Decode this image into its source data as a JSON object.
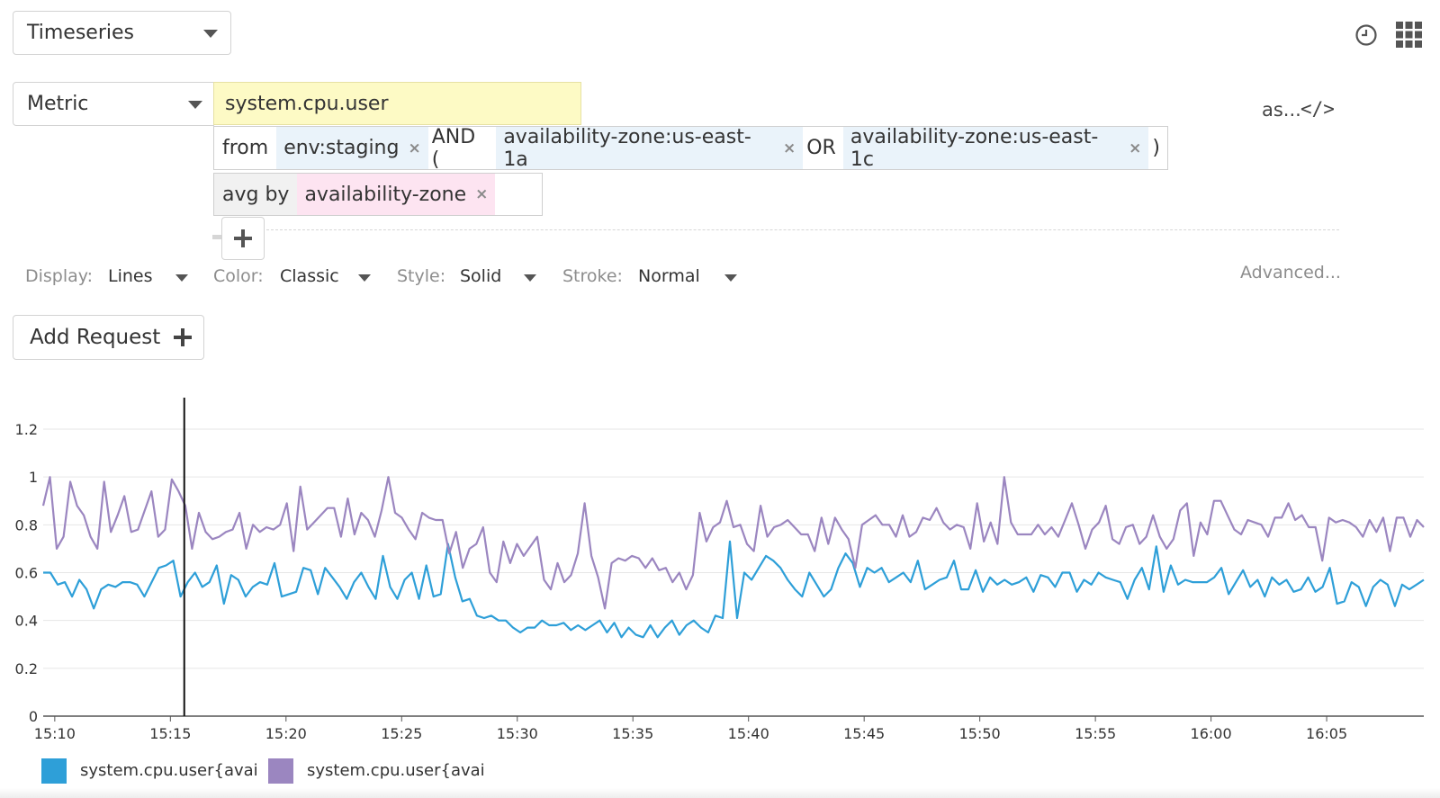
{
  "widget_type": {
    "value": "Timeseries"
  },
  "query": {
    "source_type": "Metric",
    "metric": "system.cpu.user",
    "from_label": "from",
    "tags": [
      {
        "text": "env:staging"
      },
      {
        "text": "availability-zone:us-east-1a"
      },
      {
        "text": "availability-zone:us-east-1c"
      }
    ],
    "ops": {
      "and": "AND (",
      "or": "OR",
      "close": ")"
    },
    "avg_by_label": "avg by",
    "group_tag": "availability-zone",
    "remove_glyph": "×",
    "add_glyph": "+"
  },
  "toolbar": {
    "as_label": "as...",
    "code_label": "</>"
  },
  "display_options": {
    "display": {
      "label": "Display:",
      "value": "Lines"
    },
    "color": {
      "label": "Color:",
      "value": "Classic"
    },
    "style": {
      "label": "Style:",
      "value": "Solid"
    },
    "stroke": {
      "label": "Stroke:",
      "value": "Normal"
    },
    "advanced": "Advanced..."
  },
  "add_request": {
    "label": "Add Request",
    "glyph": "+"
  },
  "icons": {
    "top_right": [
      "clock-icon",
      "grid-icon"
    ]
  },
  "chart_data": {
    "type": "line",
    "title": "",
    "xlabel": "",
    "ylabel": "",
    "ylim": [
      0,
      1.3
    ],
    "yticks": [
      "0",
      "0.2",
      "0.4",
      "0.6",
      "0.8",
      "1",
      "1.2"
    ],
    "xticks": [
      "15:10",
      "15:15",
      "15:20",
      "15:25",
      "15:30",
      "15:35",
      "15:40",
      "15:45",
      "15:50",
      "15:55",
      "16:00",
      "16:05"
    ],
    "x_start_minutes": -0.5,
    "x_end_minutes": 59.2,
    "cursor_minute": 5.6,
    "grid": true,
    "legend_position": "bottom-left",
    "series": [
      {
        "label": "system.cpu.user{avai",
        "color": "#2e9fd8",
        "values": [
          0.6,
          0.6,
          0.55,
          0.56,
          0.5,
          0.57,
          0.53,
          0.45,
          0.53,
          0.55,
          0.54,
          0.56,
          0.56,
          0.55,
          0.5,
          0.56,
          0.62,
          0.63,
          0.65,
          0.5,
          0.56,
          0.6,
          0.54,
          0.56,
          0.63,
          0.47,
          0.59,
          0.57,
          0.5,
          0.54,
          0.56,
          0.55,
          0.64,
          0.5,
          0.51,
          0.52,
          0.62,
          0.61,
          0.51,
          0.62,
          0.58,
          0.54,
          0.49,
          0.56,
          0.6,
          0.54,
          0.49,
          0.67,
          0.54,
          0.49,
          0.57,
          0.6,
          0.49,
          0.63,
          0.5,
          0.51,
          0.72,
          0.58,
          0.48,
          0.49,
          0.42,
          0.41,
          0.42,
          0.4,
          0.4,
          0.37,
          0.35,
          0.37,
          0.37,
          0.4,
          0.38,
          0.38,
          0.39,
          0.36,
          0.38,
          0.36,
          0.38,
          0.4,
          0.35,
          0.39,
          0.33,
          0.37,
          0.34,
          0.33,
          0.38,
          0.33,
          0.37,
          0.4,
          0.34,
          0.38,
          0.4,
          0.37,
          0.35,
          0.42,
          0.41,
          0.73,
          0.41,
          0.6,
          0.57,
          0.62,
          0.67,
          0.65,
          0.62,
          0.57,
          0.53,
          0.5,
          0.6,
          0.55,
          0.5,
          0.53,
          0.62,
          0.68,
          0.64,
          0.54,
          0.62,
          0.6,
          0.62,
          0.56,
          0.58,
          0.6,
          0.56,
          0.65,
          0.53,
          0.55,
          0.57,
          0.58,
          0.65,
          0.53,
          0.53,
          0.61,
          0.52,
          0.58,
          0.55,
          0.57,
          0.55,
          0.56,
          0.58,
          0.52,
          0.59,
          0.58,
          0.54,
          0.6,
          0.6,
          0.52,
          0.57,
          0.55,
          0.6,
          0.58,
          0.57,
          0.56,
          0.49,
          0.57,
          0.62,
          0.53,
          0.71,
          0.52,
          0.63,
          0.55,
          0.57,
          0.56,
          0.56,
          0.56,
          0.58,
          0.62,
          0.51,
          0.56,
          0.61,
          0.54,
          0.57,
          0.5,
          0.58,
          0.55,
          0.57,
          0.52,
          0.53,
          0.58,
          0.52,
          0.54,
          0.62,
          0.47,
          0.48,
          0.56,
          0.54,
          0.46,
          0.54,
          0.57,
          0.55,
          0.46,
          0.55,
          0.53,
          0.55,
          0.57
        ]
      },
      {
        "label": "system.cpu.user{avai",
        "color": "#9b86c0",
        "values": [
          0.88,
          1.0,
          0.7,
          0.75,
          0.98,
          0.88,
          0.84,
          0.75,
          0.7,
          0.98,
          0.77,
          0.84,
          0.92,
          0.77,
          0.78,
          0.86,
          0.94,
          0.75,
          0.78,
          0.99,
          0.94,
          0.88,
          0.7,
          0.85,
          0.77,
          0.74,
          0.75,
          0.77,
          0.78,
          0.85,
          0.7,
          0.8,
          0.77,
          0.79,
          0.78,
          0.8,
          0.89,
          0.69,
          0.96,
          0.78,
          0.81,
          0.84,
          0.87,
          0.87,
          0.75,
          0.91,
          0.76,
          0.85,
          0.82,
          0.75,
          0.86,
          1.0,
          0.85,
          0.83,
          0.78,
          0.74,
          0.85,
          0.83,
          0.82,
          0.82,
          0.68,
          0.77,
          0.62,
          0.7,
          0.72,
          0.79,
          0.6,
          0.56,
          0.73,
          0.64,
          0.72,
          0.67,
          0.71,
          0.75,
          0.57,
          0.53,
          0.64,
          0.56,
          0.59,
          0.68,
          0.89,
          0.67,
          0.58,
          0.45,
          0.64,
          0.66,
          0.65,
          0.67,
          0.66,
          0.62,
          0.66,
          0.61,
          0.62,
          0.56,
          0.6,
          0.53,
          0.59,
          0.85,
          0.73,
          0.79,
          0.81,
          0.9,
          0.79,
          0.8,
          0.72,
          0.69,
          0.88,
          0.75,
          0.79,
          0.8,
          0.82,
          0.79,
          0.76,
          0.76,
          0.69,
          0.83,
          0.72,
          0.83,
          0.78,
          0.74,
          0.62,
          0.8,
          0.82,
          0.84,
          0.8,
          0.8,
          0.75,
          0.84,
          0.75,
          0.77,
          0.83,
          0.82,
          0.87,
          0.81,
          0.78,
          0.8,
          0.79,
          0.7,
          0.89,
          0.73,
          0.81,
          0.72,
          1.0,
          0.81,
          0.76,
          0.76,
          0.76,
          0.8,
          0.76,
          0.79,
          0.75,
          0.82,
          0.89,
          0.8,
          0.7,
          0.78,
          0.81,
          0.88,
          0.74,
          0.72,
          0.79,
          0.8,
          0.72,
          0.75,
          0.84,
          0.75,
          0.7,
          0.74,
          0.86,
          0.89,
          0.67,
          0.81,
          0.76,
          0.9,
          0.9,
          0.84,
          0.78,
          0.76,
          0.82,
          0.81,
          0.8,
          0.75,
          0.83,
          0.83,
          0.89,
          0.82,
          0.84,
          0.79,
          0.79,
          0.65,
          0.83,
          0.81,
          0.82,
          0.81,
          0.79,
          0.75,
          0.82,
          0.77,
          0.83,
          0.69,
          0.83,
          0.83,
          0.75,
          0.82,
          0.79
        ]
      }
    ]
  }
}
